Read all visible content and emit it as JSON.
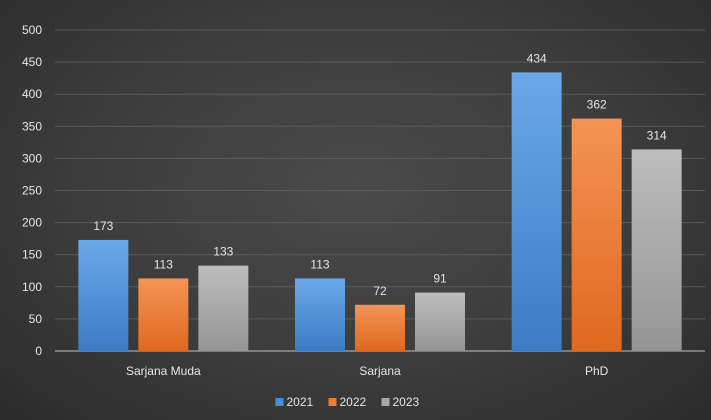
{
  "chart_data": {
    "type": "bar",
    "categories": [
      "Sarjana Muda",
      "Sarjana",
      "PhD"
    ],
    "series": [
      {
        "name": "2021",
        "values": [
          173,
          113,
          434
        ]
      },
      {
        "name": "2022",
        "values": [
          113,
          72,
          362
        ]
      },
      {
        "name": "2023",
        "values": [
          133,
          91,
          314
        ]
      }
    ],
    "ylim": [
      0,
      500
    ],
    "yticks": [
      0,
      50,
      100,
      150,
      200,
      250,
      300,
      350,
      400,
      450,
      500
    ],
    "grid": true,
    "legend": "bottom",
    "colors": [
      "#4a8fd6",
      "#ef7a30",
      "#a9a9a9"
    ]
  }
}
